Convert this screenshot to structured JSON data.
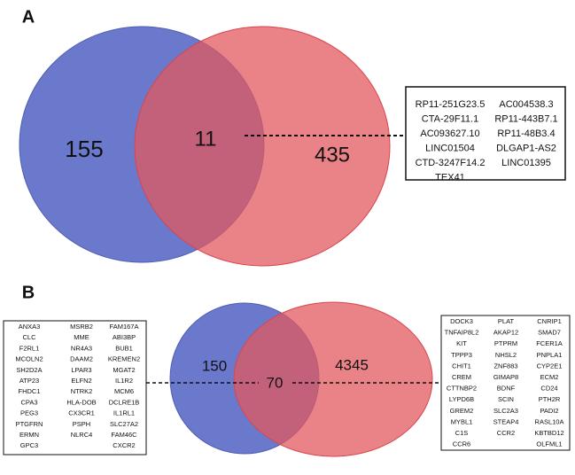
{
  "panels": [
    {
      "label": "A",
      "counts": {
        "left": "155",
        "overlap": "11",
        "right": "435"
      },
      "gene_box": {
        "columns": [
          [
            "RP11-251G23.5",
            "CTA-29F11.1",
            "AC093627.10",
            "LINC01504",
            "CTD-3247F14.2",
            "TEX41"
          ],
          [
            "AC004538.3",
            "RP11-443B7.1",
            "RP11-48B3.4",
            "DLGAP1-AS2",
            "LINC01395"
          ]
        ],
        "highlight": {
          "column": 0,
          "row": 0,
          "color": "#e8343c"
        }
      }
    },
    {
      "label": "B",
      "counts": {
        "left": "150",
        "overlap": "70",
        "right": "4345"
      },
      "left_box": {
        "columns": [
          [
            "ANXA3",
            "CLC",
            "F2RL1",
            "MCOLN2",
            "SH2D2A",
            "ATP23",
            "FHDC1",
            "CPA3",
            "PEG3",
            "PTGFRN",
            "ERMN",
            "GPC3"
          ],
          [
            "MSRB2",
            "MME",
            "NR4A3",
            "DAAM2",
            "LPAR3",
            "ELFN2",
            "NTRK2",
            "HLA-DOB",
            "CX3CR1",
            "PSPH",
            "NLRC4"
          ],
          [
            "FAM167A",
            "ABI3BP",
            "BUB1",
            "KREMEN2",
            "MGAT2",
            "IL1R2",
            "MCM6",
            "DCLRE1B",
            "IL1RL1",
            "SLC27A2",
            "FAM46C",
            "CXCR2"
          ]
        ]
      },
      "right_box": {
        "columns": [
          [
            "DOCK3",
            "TNFAIP8L2",
            "KIT",
            "TPPP3",
            "CHIT1",
            "CREM",
            "CTTNBP2",
            "LYPD6B",
            "GREM2",
            "MYBL1",
            "C1S",
            "CCR6"
          ],
          [
            "PLAT",
            "AKAP12",
            "PTPRM",
            "NHSL2",
            "ZNF883",
            "GIMAP8",
            "BDNF",
            "SCIN",
            "SLC2A3",
            "STEAP4",
            "CCR2"
          ],
          [
            "CNRIP1",
            "SMAD7",
            "FCER1A",
            "PNPLA1",
            "CYP2E1",
            "ECM2",
            "CD24",
            "PTH2R",
            "PADI2",
            "RASL10A",
            "KBTBD12",
            "OLFML1"
          ]
        ]
      }
    }
  ]
}
